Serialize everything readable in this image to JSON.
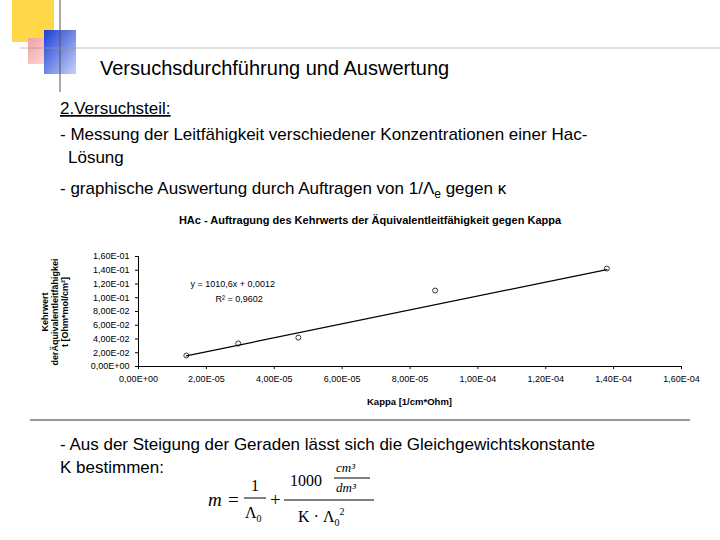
{
  "header": {
    "title": "Versuchsdurchführung und Auswertung"
  },
  "body": {
    "heading": "2.Versuchsteil:",
    "bullets": [
      [
        [
          {
            "text": "- Messung der Leitfähigkeit verschiedener Konzentrationen einer Hac-"
          }
        ],
        [
          {
            "text": "Lösung"
          }
        ]
      ],
      [
        [
          {
            "text": "- graphische Auswertung durch Auftragen von 1/Λ"
          },
          {
            "text": "e",
            "sub": true
          },
          {
            "text": " gegen κ"
          }
        ]
      ]
    ]
  },
  "chart_data": {
    "type": "scatter",
    "title": "HAc - Auftragung des Kehrwerts der Äquivalentleitfähigkeit gegen Kappa",
    "xlabel": "Kappa [1/cm*Ohm]",
    "ylabel": [
      "Kehrwert",
      "derÄquivalentleitfähigkei",
      "t [Ohm*mol/cm²]"
    ],
    "series": [
      {
        "type": "scatter",
        "marker": "circle",
        "color": "#333333",
        "x": [
          1.41e-05,
          2.94e-05,
          4.71e-05,
          8.74e-05,
          0.000138
        ],
        "values": [
          0.016,
          0.0335,
          0.042,
          0.1105,
          0.1425
        ]
      },
      {
        "type": "line",
        "line_style": "solid",
        "color": "#000000",
        "x": [
          1.41e-05,
          0.000138
        ],
        "values": [
          0.0155,
          0.141
        ]
      }
    ],
    "annotations": [
      "y = 1010,6x + 0,0012",
      "R² = 0,9602"
    ],
    "xlim": [
      0,
      0.00016
    ],
    "ylim": [
      0,
      0.16
    ],
    "xticks": [
      {
        "value": 0,
        "label": "0,00E+00"
      },
      {
        "value": 2e-05,
        "label": "2,00E-05"
      },
      {
        "value": 4e-05,
        "label": "4,00E-05"
      },
      {
        "value": 6e-05,
        "label": "6,00E-05"
      },
      {
        "value": 8e-05,
        "label": "8,00E-05"
      },
      {
        "value": 0.0001,
        "label": "1,00E-04"
      },
      {
        "value": 0.00012,
        "label": "1,20E-04"
      },
      {
        "value": 0.00014,
        "label": "1,40E-04"
      },
      {
        "value": 0.00016,
        "label": "1,60E-04"
      }
    ],
    "yticks": [
      {
        "value": 0,
        "label": "0,00E+00"
      },
      {
        "value": 0.02,
        "label": "2,00E-02"
      },
      {
        "value": 0.04,
        "label": "4,00E-02"
      },
      {
        "value": 0.06,
        "label": "6,00E-02"
      },
      {
        "value": 0.08,
        "label": "8,00E-02"
      },
      {
        "value": 0.1,
        "label": "1,00E-01"
      },
      {
        "value": 0.12,
        "label": "1,20E-01"
      },
      {
        "value": 0.14,
        "label": "1,40E-01"
      },
      {
        "value": 0.16,
        "label": "1,60E-01"
      }
    ],
    "grid": false
  },
  "conclusion": {
    "lines": [
      "- Aus der Steigung der Geraden lässt sich die Gleichgewichtskonstante",
      "K bestimmen:"
    ],
    "formula": {
      "lhs": "m",
      "eq": "=",
      "term1": {
        "num": "1",
        "den": "Λ",
        "den_sub": "0"
      },
      "plus": "+",
      "term2": {
        "num": "1000",
        "unit_num": "cm³",
        "unit_den": "dm³",
        "den": "K · Λ",
        "den_sub": "0",
        "den_sup": "2"
      }
    }
  }
}
